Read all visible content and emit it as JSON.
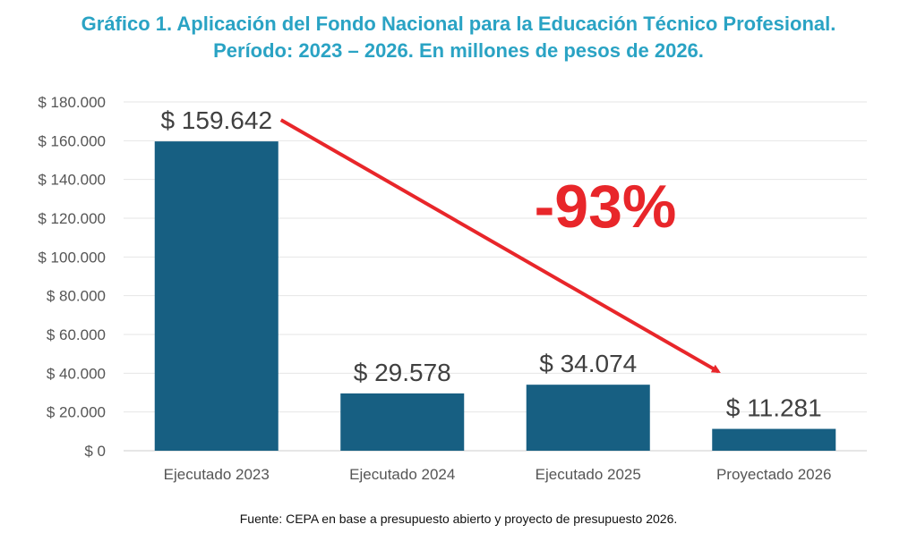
{
  "title": {
    "line1": "Gráfico 1. Aplicación del Fondo Nacional para la Educación Técnico Profesional.",
    "line2": "Período: 2023 – 2026. En millones de pesos de 2026."
  },
  "source": "Fuente: CEPA en base a presupuesto abierto y proyecto de presupuesto 2026.",
  "annotation": "-93%",
  "colors": {
    "bar": "#175f82",
    "title": "#2aa3c4",
    "arrow": "#e8262a",
    "grid": "#e6e6e6"
  },
  "chart_data": {
    "type": "bar",
    "categories": [
      "Ejecutado 2023",
      "Ejecutado 2024",
      "Ejecutado 2025",
      "Proyectado 2026"
    ],
    "values": [
      159642,
      29578,
      34074,
      11281
    ],
    "data_labels": [
      "$ 159.642",
      "$ 29.578",
      "$ 34.074",
      "$ 11.281"
    ],
    "yticks": [
      "$ 0",
      "$ 20.000",
      "$ 40.000",
      "$ 60.000",
      "$ 80.000",
      "$ 100.000",
      "$ 120.000",
      "$ 140.000",
      "$ 160.000",
      "$ 180.000"
    ],
    "ylim": [
      0,
      180000
    ],
    "grid": true,
    "title": "Gráfico 1. Aplicación del Fondo Nacional para la Educación Técnico Profesional. Período: 2023 – 2026. En millones de pesos de 2026."
  }
}
